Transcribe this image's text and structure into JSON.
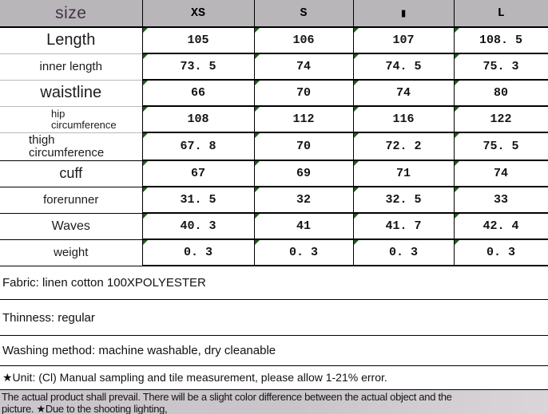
{
  "header": {
    "size_label": "size",
    "columns": [
      "XS",
      "S",
      "▮",
      "L"
    ]
  },
  "table": {
    "rows": [
      {
        "label": "Length",
        "cls": "xl",
        "values": [
          "105",
          "106",
          "107",
          "108. 5"
        ]
      },
      {
        "label": "inner length",
        "cls": "md",
        "values": [
          "73. 5",
          "74",
          "74. 5",
          "75. 3"
        ]
      },
      {
        "label": "waistline",
        "cls": "xl",
        "values": [
          "66",
          "70",
          "74",
          "80"
        ]
      },
      {
        "label": "hip\ncircumference",
        "cls": "sm left-hip",
        "values": [
          "108",
          "112",
          "116",
          "122"
        ]
      },
      {
        "label": "thigh\ncircumference",
        "cls": "md left-thigh",
        "values": [
          "67. 8",
          "70",
          "72. 2",
          "75. 5"
        ]
      },
      {
        "label": "cuff",
        "cls": "lg",
        "values": [
          "67",
          "69",
          "71",
          "74"
        ]
      },
      {
        "label": "forerunner",
        "cls": "md",
        "values": [
          "31. 5",
          "32",
          "32. 5",
          "33"
        ]
      },
      {
        "label": "Waves",
        "cls": "lg2",
        "values": [
          "40. 3",
          "41",
          "41. 7",
          "42. 4"
        ]
      },
      {
        "label": "weight",
        "cls": "md",
        "values": [
          "0. 3",
          "0. 3",
          "0. 3",
          "0. 3"
        ]
      }
    ]
  },
  "notes": [
    {
      "text": "Fabric: linen cotton 100XPOLYESTER"
    },
    {
      "text": "Thinness: regular"
    },
    {
      "text": "Washing method: machine washable, dry cleanable"
    },
    {
      "text": "★Unit: (Cl) Manual sampling and tile measurement, please allow 1-21% error."
    }
  ],
  "footer": {
    "line1": "The actual product shall prevail. There will be a slight color difference between the actual object and the",
    "line2": "picture. ★Due to the shooting lighting,"
  },
  "colors": {
    "header_bg": "#b9b6b9",
    "size_text": "#44304a",
    "cell_marker_green": "#215c21",
    "footer_band_bg": "#c9c5c9",
    "grid_border": "#000000"
  }
}
